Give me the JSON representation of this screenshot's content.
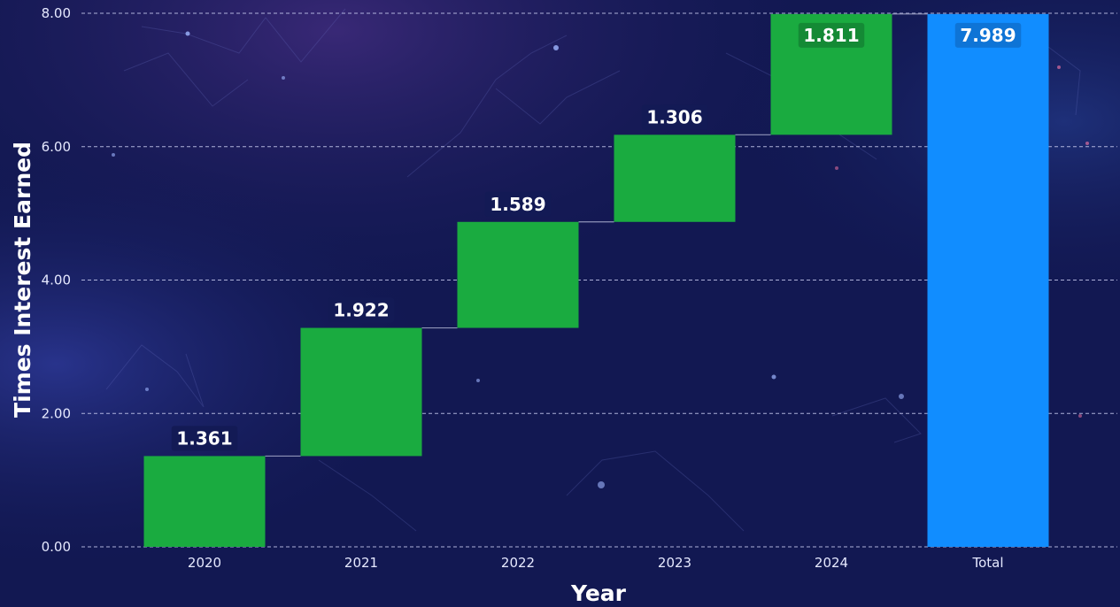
{
  "chart_data": {
    "type": "waterfall",
    "xlabel": "Year",
    "ylabel": "Times Interest Earned",
    "categories": [
      "2020",
      "2021",
      "2022",
      "2023",
      "2024"
    ],
    "values": [
      1.361,
      1.922,
      1.589,
      1.306,
      1.811
    ],
    "total": {
      "label": "Total",
      "value": 7.989
    },
    "ylim": [
      0,
      8
    ],
    "yticks": [
      "0.00",
      "2.00",
      "4.00",
      "6.00",
      "8.00"
    ],
    "grid": true,
    "colors": {
      "increase": "#1aab40",
      "total": "#118dff",
      "label_bg_increase": "#148a35",
      "label_bg_total": "#0e74d6",
      "grid": "#c9cdf0",
      "background": "#141a55"
    }
  }
}
